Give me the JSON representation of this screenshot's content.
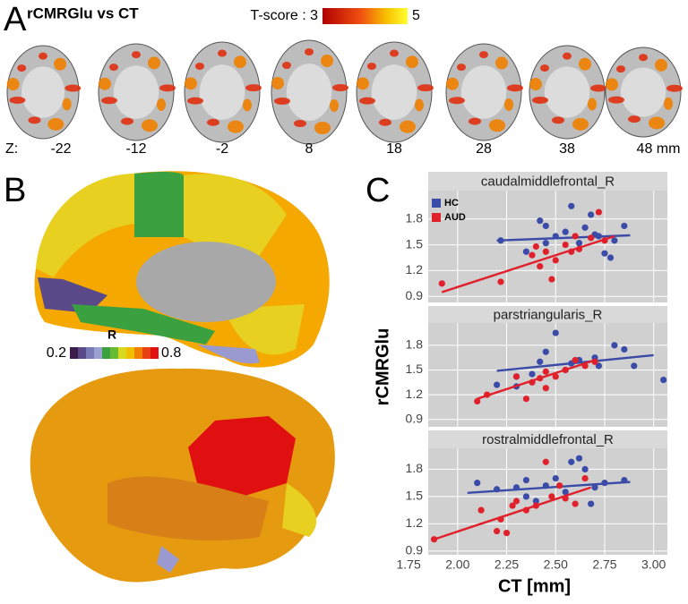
{
  "panel_a": {
    "label": "A",
    "title": "rCMRGlu vs CT",
    "colorbar_min": "T-score : 3",
    "colorbar_max": "5",
    "z_prefix": "Z:",
    "z_labels": [
      "-22",
      "-12",
      "-2",
      "8",
      "18",
      "28",
      "38",
      "48 mm"
    ]
  },
  "panel_b": {
    "label": "B",
    "colorbar_title": "R",
    "colorbar_min": "0.2",
    "colorbar_max": "0.8"
  },
  "panel_c": {
    "label": "C",
    "ylabel": "rCMRGlu"
  },
  "chart_data": [
    {
      "type": "scatter",
      "title": "caudalmiddlefrontal_R",
      "legend": true,
      "xlim": [
        1.85,
        3.07
      ],
      "ylim": [
        0.83,
        2.13
      ],
      "xticks": [
        1.75,
        2,
        2.25,
        2.5,
        2.75,
        3
      ],
      "yticks": [
        0.9,
        1.2,
        1.5,
        1.8
      ],
      "grid": true,
      "series": [
        {
          "name": "HC",
          "color": "#3b4ba8",
          "x": [
            2.22,
            2.35,
            2.42,
            2.45,
            2.5,
            2.55,
            2.58,
            2.62,
            2.65,
            2.68,
            2.72,
            2.75,
            2.78,
            2.8,
            2.85,
            2.7,
            2.45
          ],
          "values": [
            1.55,
            1.42,
            1.78,
            1.72,
            1.6,
            1.65,
            1.95,
            1.52,
            1.7,
            1.85,
            1.6,
            1.4,
            1.35,
            1.55,
            1.72,
            1.62,
            1.52
          ],
          "fit_x": [
            2.2,
            2.88
          ],
          "fit_y": [
            1.55,
            1.61
          ]
        },
        {
          "name": "AUD",
          "color": "#e0202a",
          "x": [
            1.92,
            2.22,
            2.38,
            2.42,
            2.45,
            2.48,
            2.5,
            2.55,
            2.58,
            2.62,
            2.68,
            2.72,
            2.75,
            2.4,
            2.6
          ],
          "values": [
            1.05,
            1.07,
            1.38,
            1.25,
            1.42,
            1.1,
            1.32,
            1.5,
            1.42,
            1.45,
            1.58,
            1.88,
            1.55,
            1.48,
            1.6
          ],
          "fit_x": [
            1.92,
            2.8
          ],
          "fit_y": [
            0.95,
            1.6
          ]
        }
      ]
    },
    {
      "type": "scatter",
      "title": "parstriangularis_R",
      "xlim": [
        1.85,
        3.07
      ],
      "ylim": [
        0.81,
        2.07
      ],
      "xticks": [
        1.75,
        2,
        2.25,
        2.5,
        2.75,
        3
      ],
      "yticks": [
        0.9,
        1.2,
        1.5,
        1.8
      ],
      "grid": true,
      "series": [
        {
          "color": "#3b4ba8",
          "x": [
            2.2,
            2.3,
            2.38,
            2.42,
            2.45,
            2.5,
            2.55,
            2.58,
            2.62,
            2.7,
            2.72,
            2.8,
            2.85,
            2.9,
            3.05,
            2.3
          ],
          "values": [
            1.32,
            1.42,
            1.45,
            1.6,
            1.72,
            1.95,
            1.5,
            1.58,
            1.62,
            1.65,
            1.55,
            1.8,
            1.75,
            1.55,
            1.38,
            1.3
          ],
          "fit_x": [
            2.2,
            3.0
          ],
          "fit_y": [
            1.49,
            1.68
          ]
        },
        {
          "color": "#e0202a",
          "x": [
            2.1,
            2.15,
            2.3,
            2.35,
            2.38,
            2.42,
            2.45,
            2.5,
            2.55,
            2.6,
            2.65,
            2.7,
            2.45
          ],
          "values": [
            1.12,
            1.2,
            1.42,
            1.15,
            1.35,
            1.4,
            1.48,
            1.42,
            1.5,
            1.62,
            1.55,
            1.6,
            1.28
          ],
          "fit_x": [
            2.1,
            2.7
          ],
          "fit_y": [
            1.15,
            1.62
          ]
        }
      ]
    },
    {
      "type": "scatter",
      "title": "rostralmiddlefrontal_R",
      "xlabel": "CT [mm]",
      "xlim": [
        1.85,
        3.07
      ],
      "ylim": [
        0.86,
        2.03
      ],
      "xticks": [
        1.75,
        {
          "value": 2,
          "label": "2.00"
        },
        2.25,
        {
          "value": 2.5,
          "label": "2.50"
        },
        2.75,
        {
          "value": 3,
          "label": "3.00"
        }
      ],
      "yticks": [
        0.9,
        1.2,
        1.5,
        1.8
      ],
      "grid": true,
      "series": [
        {
          "color": "#3b4ba8",
          "x": [
            2.1,
            2.2,
            2.3,
            2.35,
            2.4,
            2.45,
            2.5,
            2.55,
            2.58,
            2.62,
            2.65,
            2.7,
            2.75,
            2.68,
            2.85,
            2.35
          ],
          "values": [
            1.65,
            1.58,
            1.6,
            1.5,
            1.45,
            1.62,
            1.7,
            1.55,
            1.88,
            1.92,
            1.8,
            1.6,
            1.65,
            1.42,
            1.68,
            1.68
          ],
          "fit_x": [
            2.05,
            2.88
          ],
          "fit_y": [
            1.54,
            1.66
          ]
        },
        {
          "color": "#e0202a",
          "x": [
            1.88,
            2.12,
            2.2,
            2.22,
            2.25,
            2.3,
            2.35,
            2.4,
            2.45,
            2.48,
            2.52,
            2.55,
            2.6,
            2.65,
            2.28
          ],
          "values": [
            1.03,
            1.35,
            1.12,
            1.25,
            1.1,
            1.45,
            1.35,
            1.4,
            1.88,
            1.5,
            1.62,
            1.48,
            1.42,
            1.7,
            1.4
          ],
          "fit_x": [
            1.88,
            2.68
          ],
          "fit_y": [
            1.03,
            1.6
          ]
        }
      ]
    }
  ]
}
